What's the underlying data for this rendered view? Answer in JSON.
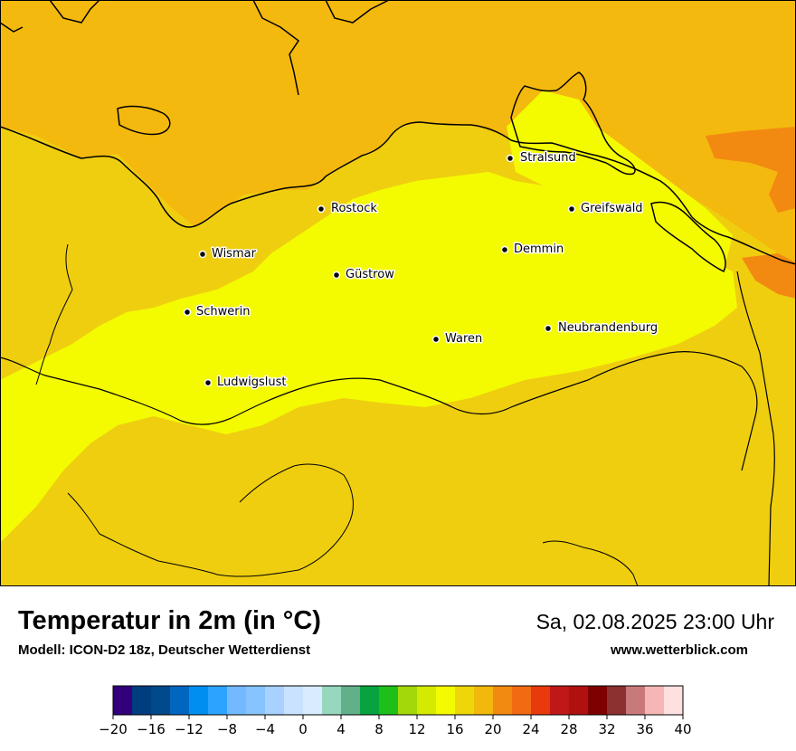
{
  "map": {
    "title": "Temperatur in 2m (in °C)",
    "model": "Modell: ICON-D2 18z, Deutscher Wetterdienst",
    "datetime": "Sa, 02.08.2025 23:00 Uhr",
    "website": "www.wetterblick.com",
    "cities": [
      {
        "name": "Stralsund"
      },
      {
        "name": "Rostock"
      },
      {
        "name": "Greifswald"
      },
      {
        "name": "Wismar"
      },
      {
        "name": "Demmin"
      },
      {
        "name": "Güstrow"
      },
      {
        "name": "Schwerin"
      },
      {
        "name": "Neubrandenburg"
      },
      {
        "name": "Waren"
      },
      {
        "name": "Ludwigslust"
      }
    ],
    "colors": {
      "sea": "#f4b90e",
      "land_warm": "#efce10",
      "land_mild": "#f4fb00",
      "hot": "#f28a12",
      "border": "#000000"
    }
  },
  "legend": {
    "min": -20,
    "max": 40,
    "step": 2,
    "tick_labels": [
      "−20",
      "−16",
      "−12",
      "−8",
      "−4",
      "0",
      "4",
      "8",
      "12",
      "16",
      "20",
      "24",
      "28",
      "32",
      "36",
      "40"
    ],
    "colors": [
      "#32007a",
      "#003d7f",
      "#00498a",
      "#0066c0",
      "#008ef0",
      "#2ba4ff",
      "#74b9ff",
      "#87c4ff",
      "#a8d1ff",
      "#c8e2ff",
      "#d8ebff",
      "#96d8bd",
      "#62b08a",
      "#08a33f",
      "#1fbf1a",
      "#a3d80a",
      "#d4ea00",
      "#f4fb00",
      "#efd60a",
      "#f2b80b",
      "#f28a12",
      "#f26a12",
      "#e83a0c",
      "#c01818",
      "#b01010",
      "#7f0000",
      "#8c3030",
      "#c87a7a",
      "#f6b6b6",
      "#ffe0e0"
    ]
  }
}
